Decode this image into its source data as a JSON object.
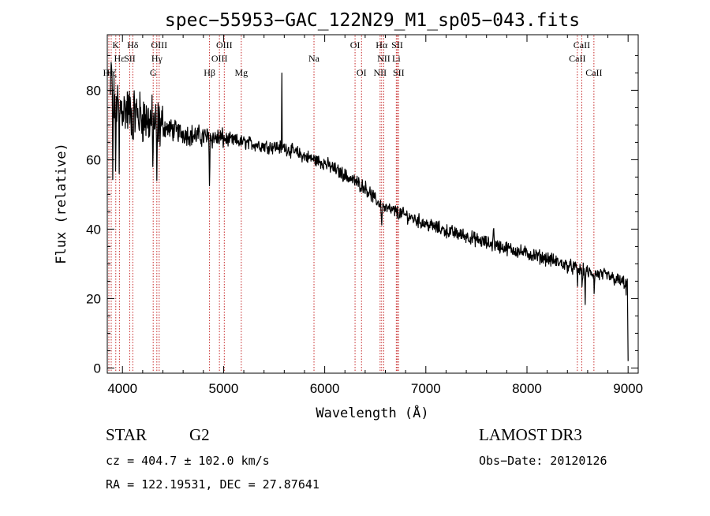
{
  "chart_data": {
    "type": "line",
    "title": "spec−55953−GAC_122N29_M1_sp05−043.fits",
    "xlabel": "Wavelength (Å)",
    "ylabel": "Flux (relative)",
    "xlim": [
      3850,
      9100
    ],
    "ylim": [
      -1.5,
      96
    ],
    "xticks": [
      4000,
      5000,
      6000,
      7000,
      8000,
      9000
    ],
    "yticks": [
      0,
      20,
      40,
      60,
      80
    ],
    "colors": {
      "spectrum": "#000000",
      "line_marker": "#c62828",
      "axes": "#000000",
      "background": "#ffffff"
    },
    "continuum": [
      [
        3880,
        78
      ],
      [
        3950,
        76
      ],
      [
        4050,
        74
      ],
      [
        4150,
        73
      ],
      [
        4250,
        71.5
      ],
      [
        4350,
        70
      ],
      [
        4450,
        69
      ],
      [
        4550,
        68
      ],
      [
        4700,
        67
      ],
      [
        4850,
        66.5
      ],
      [
        5000,
        66
      ],
      [
        5200,
        65
      ],
      [
        5400,
        64
      ],
      [
        5600,
        63.5
      ],
      [
        5800,
        61
      ],
      [
        6000,
        59
      ],
      [
        6200,
        55.5
      ],
      [
        6400,
        52
      ],
      [
        6500,
        48.5
      ],
      [
        6600,
        46
      ],
      [
        6800,
        44
      ],
      [
        7000,
        41.5
      ],
      [
        7200,
        39.5
      ],
      [
        7400,
        38
      ],
      [
        7600,
        36
      ],
      [
        7800,
        34.5
      ],
      [
        8000,
        33
      ],
      [
        8200,
        31.5
      ],
      [
        8400,
        29.5
      ],
      [
        8600,
        27.5
      ],
      [
        8800,
        26.5
      ],
      [
        9000,
        24
      ]
    ],
    "spectrum_features": [
      {
        "wavelength": 3890,
        "flux": 90,
        "width": 18
      },
      {
        "wavelength": 3905,
        "flux": 46,
        "width": 8
      },
      {
        "wavelength": 3933,
        "flux": 50,
        "width": 10
      },
      {
        "wavelength": 3968,
        "flux": 56,
        "width": 10
      },
      {
        "wavelength": 4102,
        "flux": 64,
        "width": 16
      },
      {
        "wavelength": 4300,
        "flux": 58,
        "width": 12
      },
      {
        "wavelength": 4340,
        "flux": 54,
        "width": 14
      },
      {
        "wavelength": 4861,
        "flux": 50,
        "width": 12
      },
      {
        "wavelength": 5577,
        "flux": 95,
        "width": 6
      },
      {
        "wavelength": 6563,
        "flux": 40,
        "width": 14
      },
      {
        "wavelength": 7670,
        "flux": 41,
        "width": 20
      },
      {
        "wavelength": 8500,
        "flux": 23.5,
        "width": 10
      },
      {
        "wavelength": 8545,
        "flux": 22,
        "width": 10
      },
      {
        "wavelength": 8575,
        "flux": 15,
        "width": 8
      },
      {
        "wavelength": 8665,
        "flux": 20.5,
        "width": 12
      },
      {
        "wavelength": 8980,
        "flux": 21,
        "width": 8
      },
      {
        "wavelength": 8995,
        "flux": 10,
        "width": 6
      },
      {
        "wavelength": 9000,
        "flux": 2,
        "width": 6
      }
    ],
    "spectral_lines": [
      {
        "label": "Hη",
        "wavelength": 3835,
        "row": 3
      },
      {
        "label": "Hζ",
        "wavelength": 3889,
        "row": 3
      },
      {
        "label": "K",
        "wavelength": 3934,
        "row": 1
      },
      {
        "label": "Hε",
        "wavelength": 3970,
        "row": 2
      },
      {
        "label": "SII",
        "wavelength": 4072,
        "row": 2
      },
      {
        "label": "Hδ",
        "wavelength": 4102,
        "row": 1
      },
      {
        "label": "OIII",
        "wavelength": 4363,
        "row": 1
      },
      {
        "label": "Hγ",
        "wavelength": 4340,
        "row": 2
      },
      {
        "label": "G",
        "wavelength": 4304,
        "row": 3
      },
      {
        "label": "Hβ",
        "wavelength": 4861,
        "row": 3
      },
      {
        "label": "OIII",
        "wavelength": 4959,
        "row": 2
      },
      {
        "label": "OIII",
        "wavelength": 5007,
        "row": 1
      },
      {
        "label": "Mg",
        "wavelength": 5175,
        "row": 3
      },
      {
        "label": "Na",
        "wavelength": 5894,
        "row": 2
      },
      {
        "label": "OI",
        "wavelength": 6300,
        "row": 1
      },
      {
        "label": "OI",
        "wavelength": 6364,
        "row": 3
      },
      {
        "label": "NII",
        "wavelength": 6548,
        "row": 3
      },
      {
        "label": "NII",
        "wavelength": 6584,
        "row": 2
      },
      {
        "label": "Hα",
        "wavelength": 6563,
        "row": 1
      },
      {
        "label": "SII",
        "wavelength": 6717,
        "row": 1
      },
      {
        "label": "SII",
        "wavelength": 6731,
        "row": 3
      },
      {
        "label": "Li",
        "wavelength": 6708,
        "row": 2
      },
      {
        "label": "CaII",
        "wavelength": 8498,
        "row": 2
      },
      {
        "label": "CaII",
        "wavelength": 8542,
        "row": 1
      },
      {
        "label": "CaII",
        "wavelength": 8662,
        "row": 3
      }
    ]
  },
  "info": {
    "object_class": "STAR",
    "subclass": "G2",
    "survey": "LAMOST DR3",
    "cz": "cz = 404.7 ± 102.0 km/s",
    "obs_date": "Obs−Date: 20120126",
    "coords": "RA = 122.19531, DEC =  27.87641"
  }
}
